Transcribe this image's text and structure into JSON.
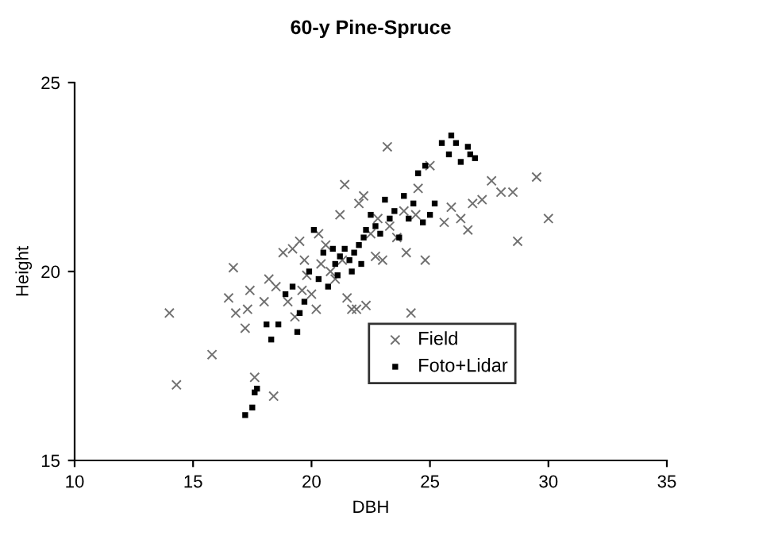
{
  "chart_data": {
    "type": "scatter",
    "title": "60-y Pine-Spruce",
    "xlabel": "DBH",
    "ylabel": "Height",
    "xlim": [
      10,
      35
    ],
    "xticks": [
      10,
      15,
      20,
      25,
      30,
      35
    ],
    "ylim": [
      15,
      25
    ],
    "yticks": [
      15,
      20,
      25
    ],
    "grid": false,
    "legend": "bottom right",
    "series": [
      {
        "name": "Field",
        "color": "#707070",
        "marker": "cross",
        "x": [
          14.0,
          14.3,
          15.8,
          16.5,
          16.7,
          16.8,
          17.2,
          17.3,
          17.4,
          17.6,
          18.0,
          18.2,
          18.4,
          18.5,
          18.8,
          19.0,
          19.2,
          19.3,
          19.5,
          19.6,
          19.8,
          20.0,
          20.2,
          20.4,
          20.6,
          21.0,
          21.2,
          21.4,
          21.5,
          21.7,
          21.9,
          22.0,
          22.2,
          22.5,
          22.7,
          23.0,
          23.2,
          23.3,
          23.6,
          24.0,
          24.2,
          24.4,
          24.5,
          24.8,
          25.0,
          25.6,
          25.9,
          26.3,
          26.6,
          26.8,
          27.2,
          27.6,
          28.0,
          28.5,
          28.7,
          29.5,
          30.0,
          20.3,
          22.8,
          23.9,
          21.3,
          20.8,
          19.7,
          22.3
        ],
        "values": [
          18.9,
          17.0,
          17.8,
          19.3,
          20.1,
          18.9,
          18.5,
          19.0,
          19.5,
          17.2,
          19.2,
          19.8,
          16.7,
          19.6,
          20.5,
          19.2,
          20.6,
          18.8,
          20.8,
          19.5,
          19.9,
          19.4,
          19.0,
          20.2,
          20.7,
          19.8,
          21.5,
          22.3,
          19.3,
          19.0,
          19.0,
          21.8,
          22.0,
          21.0,
          20.4,
          20.3,
          23.3,
          21.2,
          20.9,
          20.5,
          18.9,
          21.5,
          22.2,
          20.3,
          22.8,
          21.3,
          21.7,
          21.4,
          21.1,
          21.8,
          21.9,
          22.4,
          22.1,
          22.1,
          20.8,
          22.5,
          21.4,
          21.0,
          21.4,
          21.6,
          20.3,
          20.0,
          20.3,
          19.1
        ]
      },
      {
        "name": "Foto+Lidar",
        "color": "#000000",
        "marker": "square",
        "x": [
          17.2,
          17.5,
          17.6,
          17.7,
          18.3,
          18.6,
          18.9,
          19.2,
          19.5,
          19.7,
          19.9,
          20.1,
          20.3,
          20.5,
          20.7,
          21.0,
          21.2,
          21.4,
          21.6,
          21.8,
          22.0,
          22.1,
          22.3,
          22.5,
          22.7,
          22.9,
          23.1,
          23.3,
          23.5,
          23.7,
          23.9,
          24.1,
          24.3,
          24.5,
          24.8,
          25.0,
          25.2,
          25.5,
          25.8,
          26.1,
          26.3,
          26.6,
          26.7,
          26.9,
          25.9,
          24.7,
          21.1,
          20.9,
          21.7,
          22.2,
          19.4,
          18.1
        ],
        "values": [
          16.2,
          16.4,
          16.8,
          16.9,
          18.2,
          18.6,
          19.4,
          19.6,
          18.9,
          19.2,
          20.0,
          21.1,
          19.8,
          20.5,
          19.6,
          20.2,
          20.4,
          20.6,
          20.3,
          20.5,
          20.7,
          20.2,
          21.1,
          21.5,
          21.2,
          21.0,
          21.9,
          21.4,
          21.6,
          20.9,
          22.0,
          21.4,
          21.8,
          22.6,
          22.8,
          21.5,
          21.8,
          23.4,
          23.1,
          23.4,
          22.9,
          23.3,
          23.1,
          23.0,
          23.6,
          21.3,
          19.9,
          20.6,
          20.0,
          20.9,
          18.4,
          18.6
        ]
      }
    ]
  }
}
